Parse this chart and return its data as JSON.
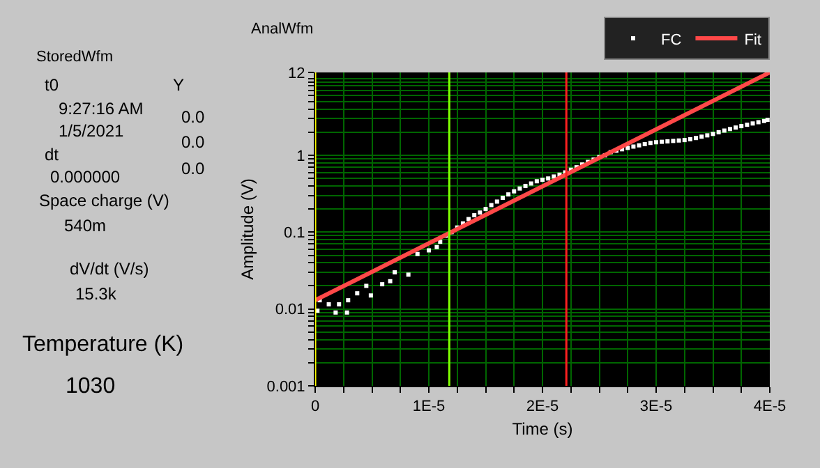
{
  "chart_data": {
    "type": "line",
    "title": "AnalWfm",
    "xlabel": "Time (s)",
    "ylabel": "Amplitude (V)",
    "log": "y",
    "grid": true,
    "legend": "top right",
    "xlim": [
      0,
      4e-05
    ],
    "xticks": [
      0,
      {
        "value": 2.5e-06,
        "label": null
      },
      {
        "value": 5e-06,
        "label": null
      },
      {
        "value": 7.5e-06,
        "label": null
      },
      {
        "value": 1e-05,
        "label": "1E-5"
      },
      {
        "value": 1.25e-05,
        "label": null
      },
      {
        "value": 1.5e-05,
        "label": null
      },
      {
        "value": 1.75e-05,
        "label": null
      },
      {
        "value": 2e-05,
        "label": "2E-5"
      },
      {
        "value": 2.25e-05,
        "label": null
      },
      {
        "value": 2.5e-05,
        "label": null
      },
      {
        "value": 2.75e-05,
        "label": null
      },
      {
        "value": 3e-05,
        "label": "3E-5"
      },
      {
        "value": 3.25e-05,
        "label": null
      },
      {
        "value": 3.5e-05,
        "label": null
      },
      {
        "value": 3.75e-05,
        "label": null
      },
      {
        "value": 4e-05,
        "label": "4E-5"
      }
    ],
    "ylim": [
      0.001,
      12
    ],
    "yticks": [
      0.001,
      {
        "value": 0.002,
        "label": null
      },
      {
        "value": 0.003,
        "label": null
      },
      {
        "value": 0.004,
        "label": null
      },
      {
        "value": 0.005,
        "label": null
      },
      {
        "value": 0.006,
        "label": null
      },
      {
        "value": 0.007,
        "label": null
      },
      {
        "value": 0.008,
        "label": null
      },
      {
        "value": 0.009,
        "label": null
      },
      0.01,
      {
        "value": 0.02,
        "label": null
      },
      {
        "value": 0.03,
        "label": null
      },
      {
        "value": 0.04,
        "label": null
      },
      {
        "value": 0.05,
        "label": null
      },
      {
        "value": 0.06,
        "label": null
      },
      {
        "value": 0.07,
        "label": null
      },
      {
        "value": 0.08,
        "label": null
      },
      {
        "value": 0.09,
        "label": null
      },
      0.1,
      {
        "value": 0.2,
        "label": null
      },
      {
        "value": 0.3,
        "label": null
      },
      {
        "value": 0.4,
        "label": null
      },
      {
        "value": 0.5,
        "label": null
      },
      {
        "value": 0.6,
        "label": null
      },
      {
        "value": 0.7,
        "label": null
      },
      {
        "value": 0.8,
        "label": null
      },
      {
        "value": 0.9,
        "label": null
      },
      1,
      {
        "value": 2,
        "label": null
      },
      {
        "value": 3,
        "label": null
      },
      {
        "value": 4,
        "label": null
      },
      {
        "value": 5,
        "label": null
      },
      {
        "value": 6,
        "label": null
      },
      {
        "value": 7,
        "label": null
      },
      {
        "value": 8,
        "label": null
      },
      {
        "value": 9,
        "label": null
      },
      {
        "value": 10,
        "label": null
      },
      12
    ],
    "series": [
      {
        "name": "FC",
        "type": "scatter",
        "marker": "square",
        "color": "#ffffff",
        "x": [
          2e-07,
          4e-07,
          1.2e-06,
          1.8e-06,
          2.1e-06,
          2.8e-06,
          2.9e-06,
          3.7e-06,
          4.5e-06,
          4.9e-06,
          5.9e-06,
          6.6e-06,
          7e-06,
          8.2e-06,
          9e-06,
          1e-05,
          1.07e-05,
          1.1e-05,
          1.15e-05,
          1.2e-05,
          1.25e-05,
          1.3e-05,
          1.35e-05,
          1.4e-05,
          1.45e-05,
          1.5e-05,
          1.55e-05,
          1.6e-05,
          1.65e-05,
          1.7e-05,
          1.75e-05,
          1.8e-05,
          1.85e-05,
          1.9e-05,
          1.95e-05,
          2e-05,
          2.05e-05,
          2.1e-05,
          2.15e-05,
          2.2e-05,
          2.25e-05,
          2.3e-05,
          2.35e-05,
          2.4e-05,
          2.45e-05,
          2.5e-05,
          2.55e-05,
          2.6e-05,
          2.65e-05,
          2.7e-05,
          2.75e-05,
          2.8e-05,
          2.85e-05,
          2.9e-05,
          2.95e-05,
          3e-05,
          3.05e-05,
          3.1e-05,
          3.15e-05,
          3.2e-05,
          3.25e-05,
          3.3e-05,
          3.35e-05,
          3.4e-05,
          3.45e-05,
          3.5e-05,
          3.55e-05,
          3.6e-05,
          3.65e-05,
          3.7e-05,
          3.75e-05,
          3.8e-05,
          3.85e-05,
          3.9e-05,
          3.95e-05,
          3.98e-05
        ],
        "values": [
          0.0095,
          0.013,
          0.0115,
          0.009,
          0.0115,
          0.009,
          0.013,
          0.016,
          0.02,
          0.015,
          0.021,
          0.023,
          0.03,
          0.028,
          0.052,
          0.058,
          0.064,
          0.075,
          0.09,
          0.1,
          0.115,
          0.13,
          0.148,
          0.166,
          0.18,
          0.2,
          0.225,
          0.25,
          0.28,
          0.31,
          0.34,
          0.37,
          0.4,
          0.43,
          0.46,
          0.48,
          0.5,
          0.53,
          0.56,
          0.6,
          0.65,
          0.7,
          0.76,
          0.82,
          0.88,
          0.95,
          1.0,
          1.1,
          1.15,
          1.2,
          1.25,
          1.3,
          1.35,
          1.4,
          1.45,
          1.48,
          1.5,
          1.52,
          1.54,
          1.56,
          1.58,
          1.62,
          1.68,
          1.75,
          1.82,
          1.9,
          2.0,
          2.1,
          2.2,
          2.3,
          2.4,
          2.5,
          2.6,
          2.7,
          2.8,
          2.9
        ]
      },
      {
        "name": "Fit",
        "color": "#ff4848",
        "x": [
          0,
          4e-05
        ],
        "values": [
          0.013,
          12
        ]
      }
    ],
    "ref_lines": [
      {
        "axis": "x",
        "value": 0,
        "color": "#ffff00"
      },
      {
        "axis": "x",
        "value": 1.18e-05,
        "color": "#80ff00"
      },
      {
        "axis": "x",
        "value": 2.21e-05,
        "color": "#ff2020"
      }
    ],
    "annotations": [
      "StoredWfm",
      "t0",
      "9:27:16 AM",
      "1/5/2021",
      "dt",
      "0.000000",
      "Y",
      "0.0",
      "0.0",
      "0.0",
      "Space charge (V)",
      "540m",
      "dV/dt (V/s)",
      "15.3k",
      "Temperature (K)",
      "1030"
    ]
  }
}
